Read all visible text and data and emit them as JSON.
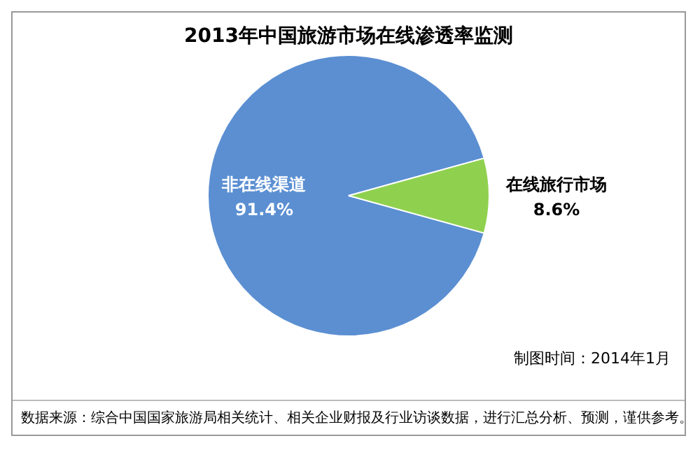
{
  "chart_data": {
    "type": "pie",
    "title": "2013年中国旅游市场在线渗透率监测",
    "categories": [
      "非在线渠道",
      "在线旅行市场"
    ],
    "values": [
      91.4,
      8.6
    ],
    "value_labels": [
      "91.4%",
      "8.6%"
    ],
    "colors": [
      "#5b8fd2",
      "#8fd14f"
    ],
    "legend": false,
    "annotations": [
      "制图时间：2014年1月",
      "数据来源：综合中国国家旅游局相关统计、相关企业财报及行业访谈数据，进行汇总分析、预测，谨供参考。"
    ]
  }
}
